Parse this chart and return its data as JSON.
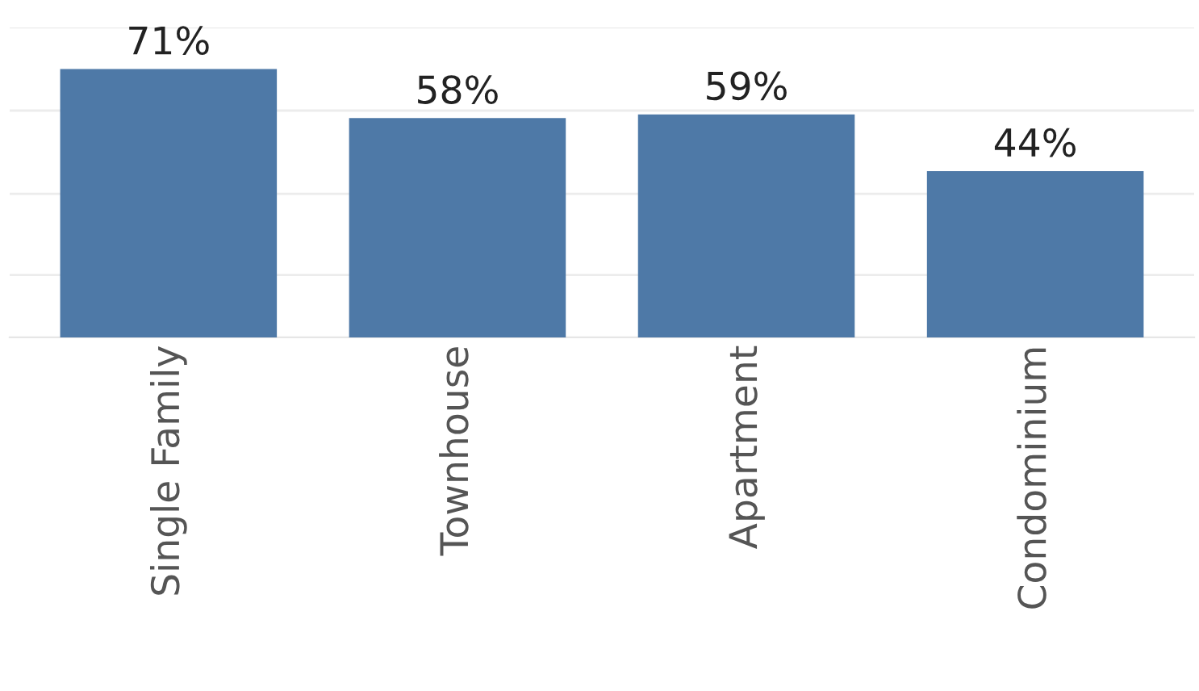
{
  "chart_data": {
    "type": "bar",
    "categories": [
      "Single Family",
      "Townhouse",
      "Apartment",
      "Condominium"
    ],
    "values": [
      71,
      58,
      59,
      44
    ],
    "value_labels": [
      "71%",
      "58%",
      "59%",
      "44%"
    ],
    "color": "#4e79a7",
    "ylim": [
      0,
      82
    ],
    "yticks": [
      {
        "value": 16.5,
        "label": null
      },
      {
        "value": 38,
        "label": null
      },
      {
        "value": 60,
        "label": null
      },
      {
        "value": 82,
        "label": null
      }
    ],
    "grid": "y",
    "tick_labels": "x"
  }
}
